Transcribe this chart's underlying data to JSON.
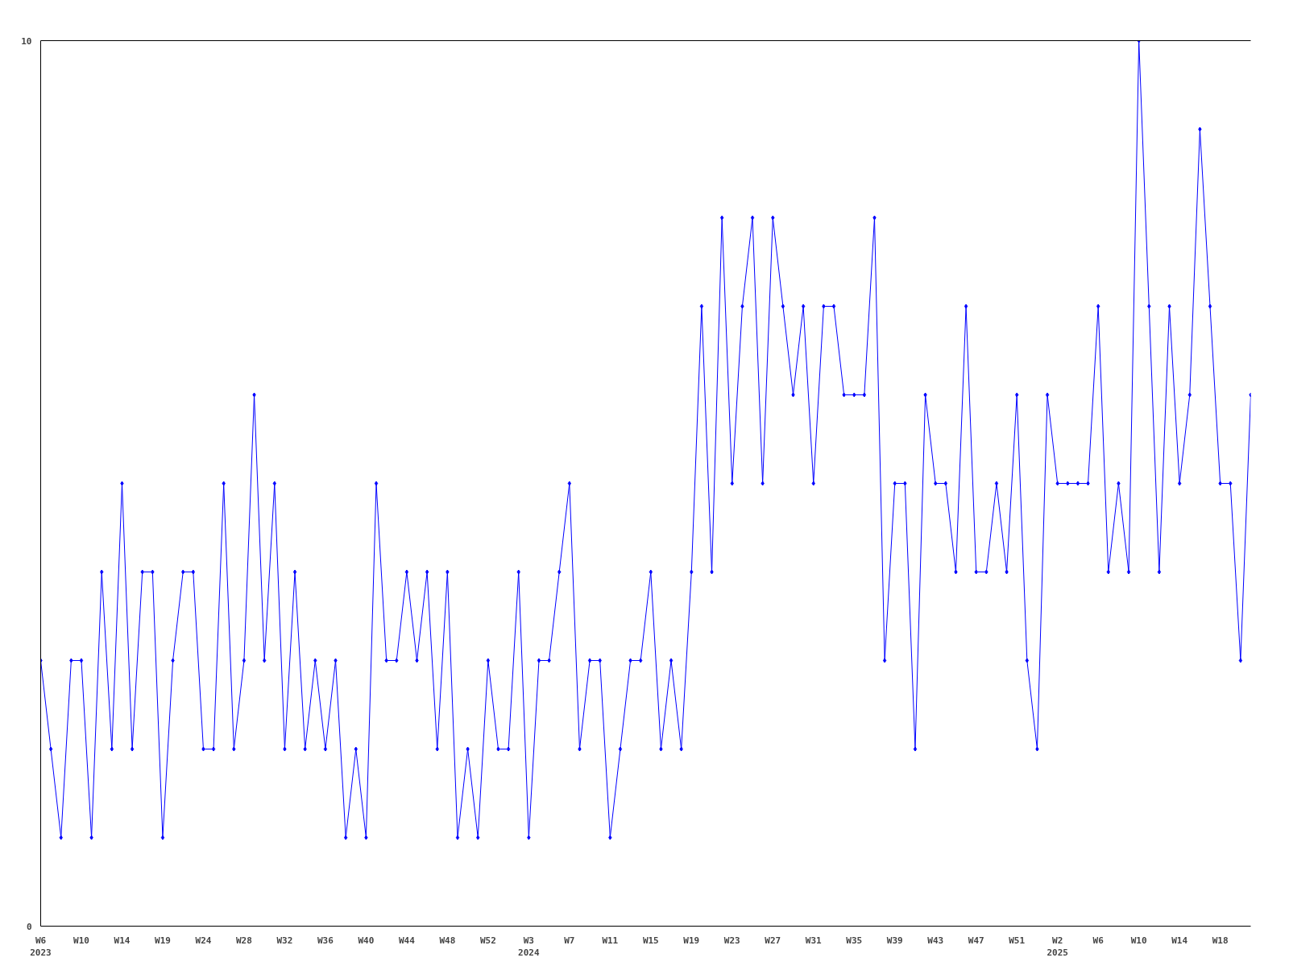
{
  "chart_data": {
    "type": "line",
    "categories": [
      "W6\n2023",
      null,
      null,
      null,
      "W10",
      null,
      null,
      null,
      "W14",
      null,
      null,
      null,
      "W19",
      null,
      null,
      null,
      "W24",
      null,
      null,
      null,
      "W28",
      null,
      null,
      null,
      "W32",
      null,
      null,
      null,
      "W36",
      null,
      null,
      null,
      "W40",
      null,
      null,
      null,
      "W44",
      null,
      null,
      null,
      "W48",
      null,
      null,
      null,
      "W52",
      null,
      null,
      null,
      "W3\n2024",
      null,
      null,
      null,
      "W7",
      null,
      null,
      null,
      "W11",
      null,
      null,
      null,
      "W15",
      null,
      null,
      null,
      "W19",
      null,
      null,
      null,
      "W23",
      null,
      null,
      null,
      "W27",
      null,
      null,
      null,
      "W31",
      null,
      null,
      null,
      "W35",
      null,
      null,
      null,
      "W39",
      null,
      null,
      null,
      "W43",
      null,
      null,
      null,
      "W47",
      null,
      null,
      null,
      "W51",
      null,
      null,
      null,
      "W2\n2025",
      null,
      null,
      null,
      "W6",
      null,
      null,
      null,
      "W10",
      null,
      null,
      null,
      "W14",
      null,
      null,
      null,
      "W18",
      null,
      null,
      null
    ],
    "series": [
      {
        "color": "#0000ff",
        "values": [
          3,
          2,
          1,
          3,
          3,
          1,
          4,
          2,
          5,
          2,
          4,
          4,
          1,
          3,
          4,
          4,
          2,
          2,
          5,
          2,
          3,
          6,
          3,
          5,
          2,
          4,
          2,
          3,
          2,
          3,
          1,
          2,
          1,
          5,
          3,
          3,
          4,
          3,
          4,
          2,
          4,
          1,
          2,
          1,
          3,
          2,
          2,
          4,
          1,
          3,
          3,
          4,
          5,
          2,
          3,
          3,
          1,
          2,
          3,
          3,
          4,
          2,
          3,
          2,
          4,
          7,
          4,
          8,
          5,
          7,
          8,
          5,
          8,
          7,
          6,
          7,
          5,
          7,
          7,
          6,
          6,
          6,
          8,
          3,
          5,
          5,
          2,
          6,
          5,
          5,
          4,
          7,
          4,
          4,
          5,
          4,
          6,
          3,
          2,
          6,
          5,
          5,
          5,
          5,
          7,
          4,
          5,
          4,
          10,
          7,
          4,
          7,
          5,
          6,
          9,
          7,
          5,
          5,
          3,
          6
        ]
      }
    ],
    "ylim": [
      0,
      10
    ],
    "yticks": [
      0,
      10
    ],
    "grid": false,
    "marker": "diamond",
    "line_style": "solid"
  }
}
